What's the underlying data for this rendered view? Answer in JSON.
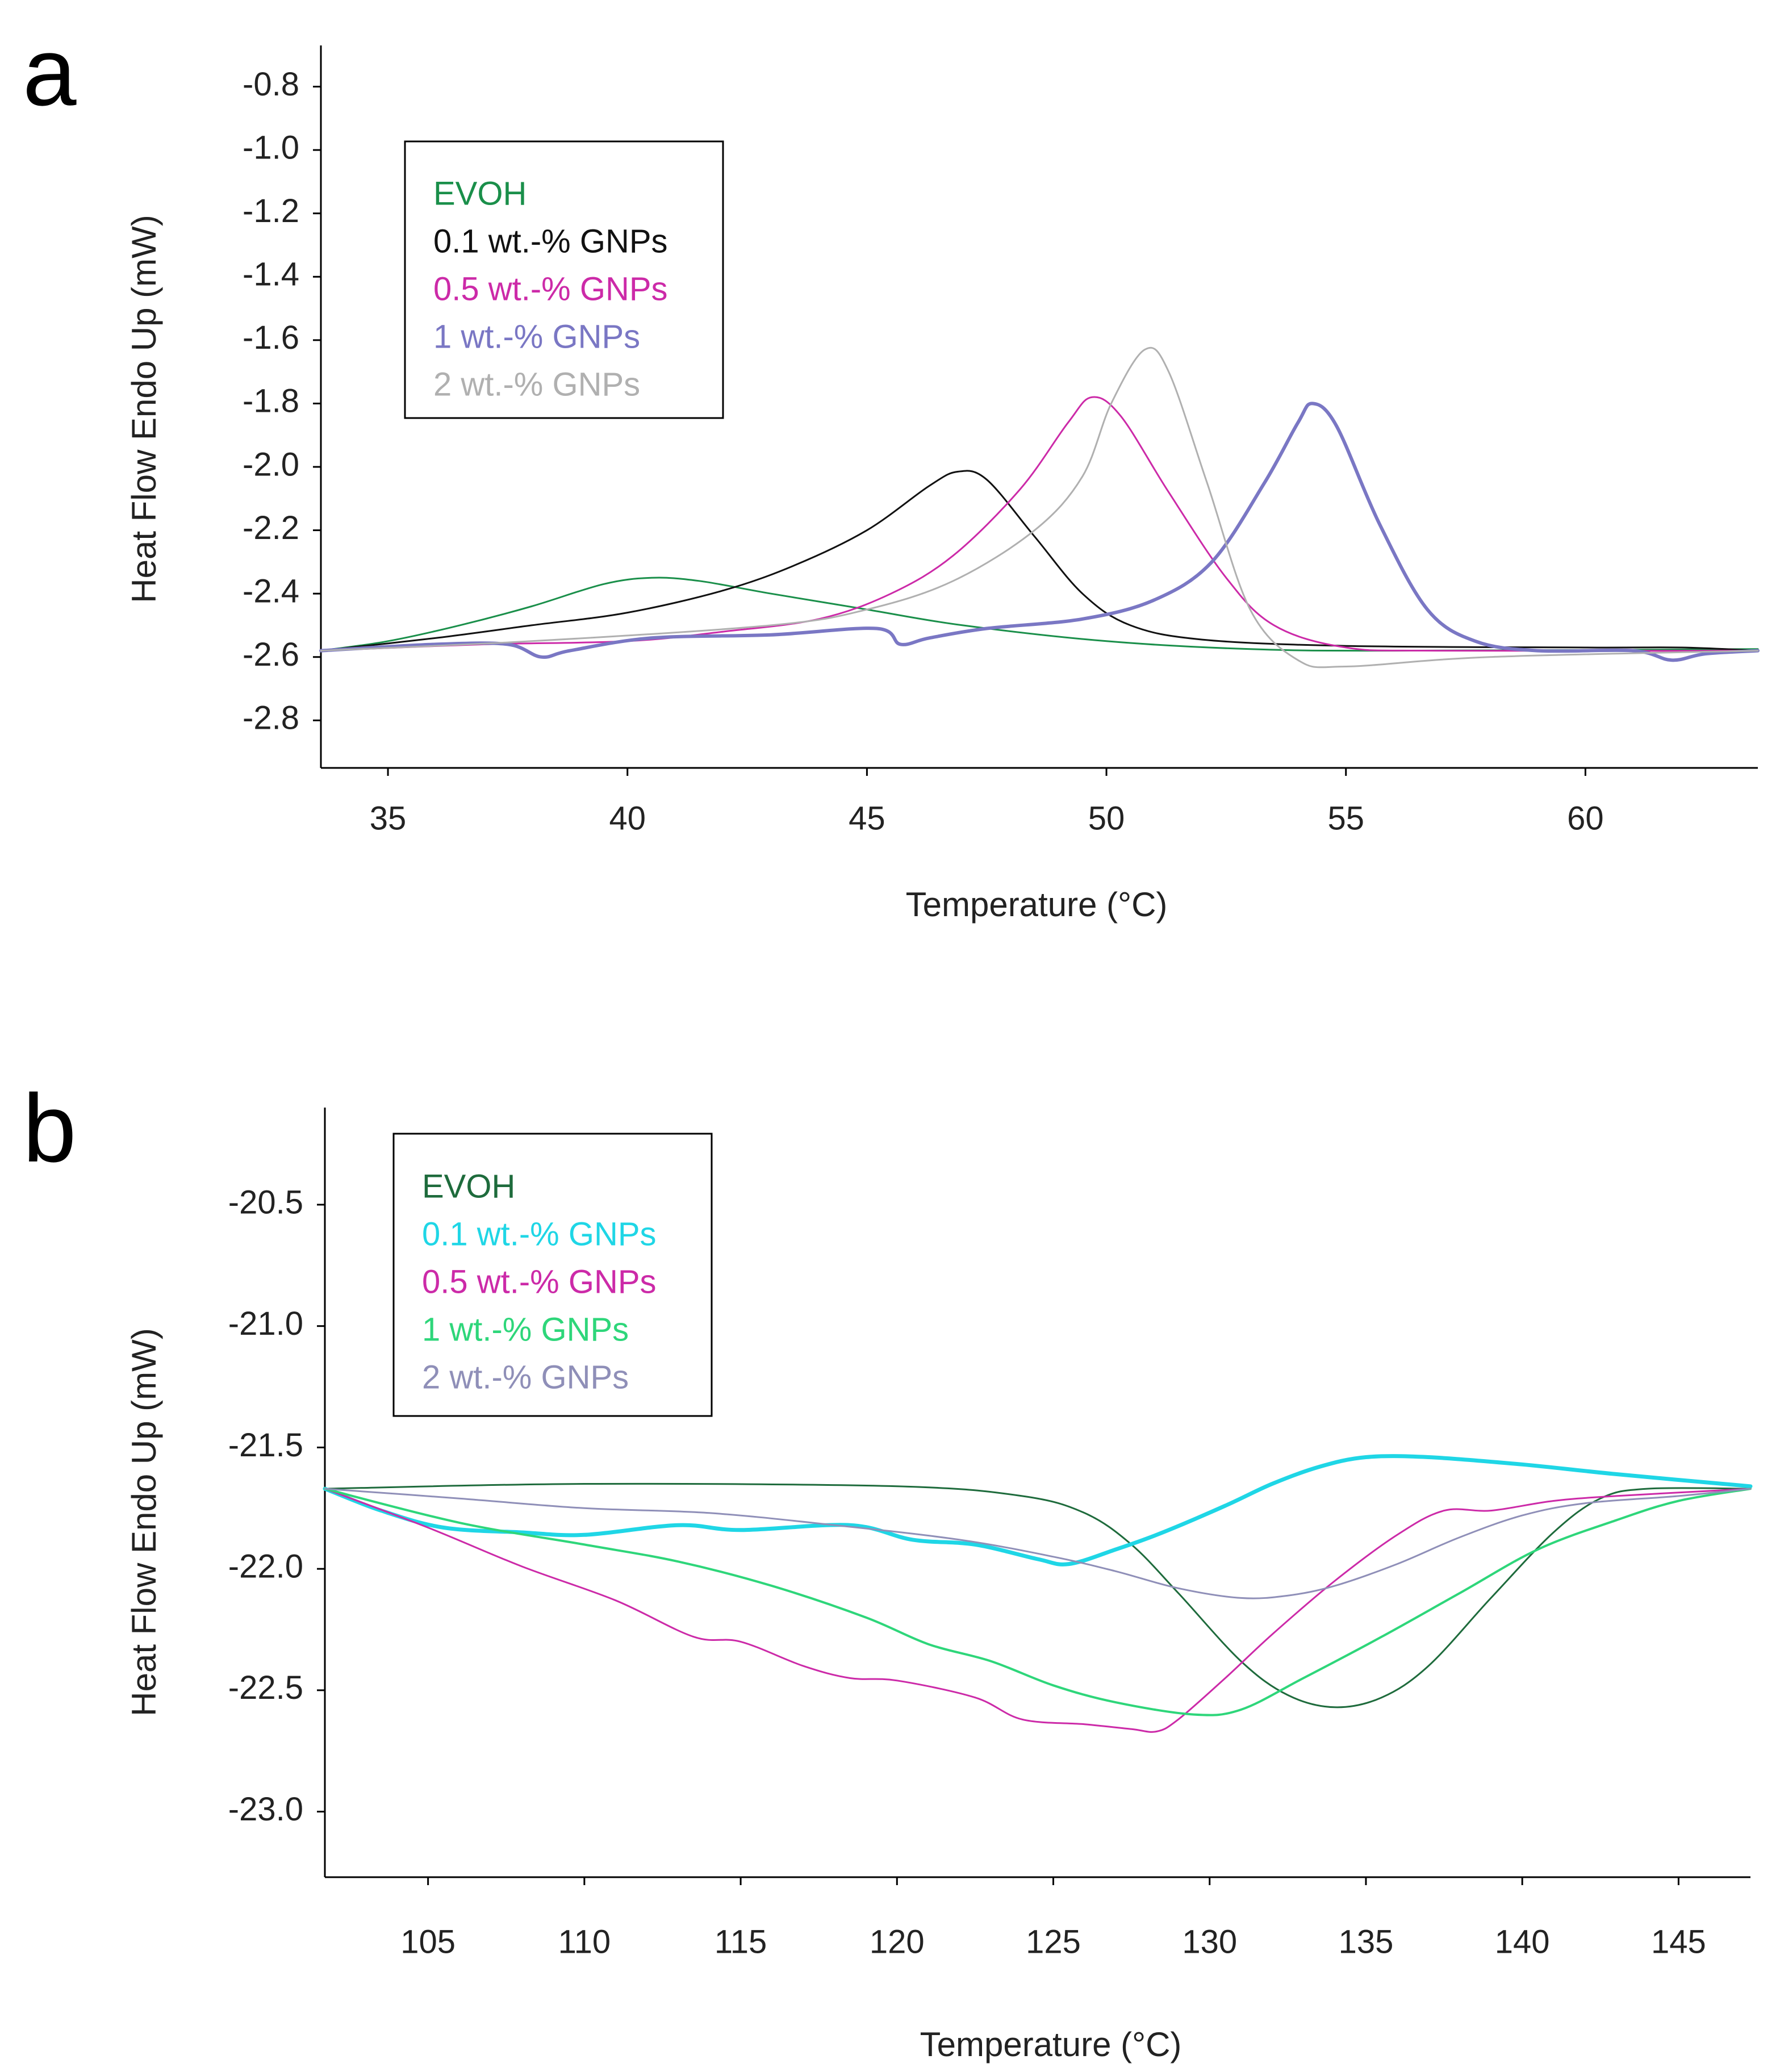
{
  "chart_data": [
    {
      "panel_label": "a",
      "type": "line",
      "title": "",
      "xlabel": "Temperature  (°C)",
      "ylabel": "Heat Flow Endo Up (mW)",
      "xlim": [
        33.6,
        63.6
      ],
      "ylim": [
        -2.95,
        -0.67
      ],
      "xticks": [
        35,
        40,
        45,
        50,
        55,
        60
      ],
      "xtick_labels": [
        "35",
        "40",
        "45",
        "50",
        "55",
        "60"
      ],
      "yticks": [
        -0.8,
        -1.0,
        -1.2,
        -1.4,
        -1.6,
        -1.8,
        -2.0,
        -2.2,
        -2.4,
        -2.6,
        -2.8
      ],
      "ytick_labels": [
        "-0.8",
        "-1.0",
        "-1.2",
        "-1.4",
        "-1.6",
        "-1.8",
        "-2.0",
        "-2.2",
        "-2.4",
        "-2.6",
        "-2.8"
      ],
      "grid": false,
      "legend_position": "top-left",
      "series": [
        {
          "name": "EVOH",
          "color": "#1a8f4a",
          "width": 3,
          "points": [
            [
              33.6,
              -2.58
            ],
            [
              35,
              -2.55
            ],
            [
              36.5,
              -2.5
            ],
            [
              38,
              -2.44
            ],
            [
              39.5,
              -2.37
            ],
            [
              40.5,
              -2.35
            ],
            [
              41.5,
              -2.36
            ],
            [
              43,
              -2.4
            ],
            [
              45,
              -2.45
            ],
            [
              47,
              -2.5
            ],
            [
              50,
              -2.55
            ],
            [
              53,
              -2.575
            ],
            [
              56,
              -2.58
            ],
            [
              63.6,
              -2.575
            ]
          ]
        },
        {
          "name": "0.1 wt.-% GNPs",
          "color": "#111111",
          "width": 3,
          "points": [
            [
              33.6,
              -2.58
            ],
            [
              36,
              -2.54
            ],
            [
              38,
              -2.5
            ],
            [
              40,
              -2.46
            ],
            [
              42,
              -2.39
            ],
            [
              43.5,
              -2.31
            ],
            [
              45,
              -2.2
            ],
            [
              46.3,
              -2.06
            ],
            [
              46.9,
              -2.015
            ],
            [
              47.5,
              -2.04
            ],
            [
              48.5,
              -2.22
            ],
            [
              49.5,
              -2.4
            ],
            [
              50.5,
              -2.5
            ],
            [
              52,
              -2.545
            ],
            [
              55,
              -2.565
            ],
            [
              60,
              -2.57
            ],
            [
              62,
              -2.57
            ],
            [
              63.6,
              -2.58
            ]
          ]
        },
        {
          "name": "0.5 wt.-% GNPs",
          "color": "#cc2aa8",
          "width": 3,
          "points": [
            [
              33.6,
              -2.58
            ],
            [
              37,
              -2.56
            ],
            [
              40,
              -2.55
            ],
            [
              42,
              -2.52
            ],
            [
              44,
              -2.48
            ],
            [
              45.5,
              -2.4
            ],
            [
              46.8,
              -2.28
            ],
            [
              48.2,
              -2.07
            ],
            [
              49.2,
              -1.86
            ],
            [
              49.7,
              -1.78
            ],
            [
              50.3,
              -1.84
            ],
            [
              51.3,
              -2.08
            ],
            [
              52.5,
              -2.35
            ],
            [
              53.5,
              -2.5
            ],
            [
              55,
              -2.57
            ],
            [
              57,
              -2.58
            ],
            [
              63.6,
              -2.58
            ]
          ]
        },
        {
          "name": "1 wt.-% GNPs",
          "color": "#7a77c4",
          "width": 6,
          "points": [
            [
              33.6,
              -2.58
            ],
            [
              36,
              -2.56
            ],
            [
              37.5,
              -2.56
            ],
            [
              38.2,
              -2.6
            ],
            [
              38.8,
              -2.58
            ],
            [
              40.5,
              -2.54
            ],
            [
              43,
              -2.53
            ],
            [
              45.2,
              -2.51
            ],
            [
              45.7,
              -2.56
            ],
            [
              46.3,
              -2.54
            ],
            [
              47.5,
              -2.51
            ],
            [
              49.5,
              -2.48
            ],
            [
              51,
              -2.42
            ],
            [
              52.2,
              -2.3
            ],
            [
              53.3,
              -2.05
            ],
            [
              54,
              -1.86
            ],
            [
              54.3,
              -1.8
            ],
            [
              54.8,
              -1.87
            ],
            [
              55.7,
              -2.18
            ],
            [
              56.7,
              -2.45
            ],
            [
              57.7,
              -2.55
            ],
            [
              59,
              -2.58
            ],
            [
              61,
              -2.58
            ],
            [
              61.8,
              -2.61
            ],
            [
              62.5,
              -2.59
            ],
            [
              63.6,
              -2.58
            ]
          ]
        },
        {
          "name": "2 wt.-% GNPs",
          "color": "#b0b0b0",
          "width": 3,
          "points": [
            [
              33.6,
              -2.58
            ],
            [
              38,
              -2.55
            ],
            [
              43,
              -2.5
            ],
            [
              45,
              -2.45
            ],
            [
              46.8,
              -2.36
            ],
            [
              48.5,
              -2.2
            ],
            [
              49.5,
              -2.03
            ],
            [
              50.1,
              -1.8
            ],
            [
              50.8,
              -1.63
            ],
            [
              51.3,
              -1.7
            ],
            [
              52.1,
              -2.05
            ],
            [
              53,
              -2.45
            ],
            [
              54,
              -2.61
            ],
            [
              55,
              -2.63
            ],
            [
              58,
              -2.6
            ],
            [
              63.6,
              -2.58
            ]
          ]
        }
      ]
    },
    {
      "panel_label": "b",
      "type": "line",
      "title": "",
      "xlabel": "Temperature  (°C)",
      "ylabel": "Heat Flow Endo Up (mW)",
      "xlim": [
        101.7,
        147.3
      ],
      "ylim": [
        -23.27,
        -20.1
      ],
      "xticks": [
        105,
        110,
        115,
        120,
        125,
        130,
        135,
        140,
        145
      ],
      "xtick_labels": [
        "105",
        "110",
        "115",
        "120",
        "125",
        "130",
        "135",
        "140",
        "145"
      ],
      "yticks": [
        -20.5,
        -21.0,
        -21.5,
        -22.0,
        -22.5,
        -23.0
      ],
      "ytick_labels": [
        "-20.5",
        "-21.0",
        "-21.5",
        "-22.0",
        "-22.5",
        "-23.0"
      ],
      "grid": false,
      "legend_position": "top-left",
      "series": [
        {
          "name": "EVOH",
          "color": "#1e6b3c",
          "width": 3,
          "points": [
            [
              101.7,
              -21.67
            ],
            [
              110,
              -21.65
            ],
            [
              120,
              -21.66
            ],
            [
              124,
              -21.7
            ],
            [
              126,
              -21.77
            ],
            [
              127.5,
              -21.9
            ],
            [
              129,
              -22.1
            ],
            [
              131,
              -22.38
            ],
            [
              132.5,
              -22.52
            ],
            [
              134,
              -22.57
            ],
            [
              135.5,
              -22.53
            ],
            [
              137,
              -22.4
            ],
            [
              139,
              -22.12
            ],
            [
              141,
              -21.85
            ],
            [
              142.5,
              -21.71
            ],
            [
              144,
              -21.67
            ],
            [
              147.3,
              -21.67
            ]
          ]
        },
        {
          "name": "0.1 wt.-% GNPs",
          "color": "#1fd6e6",
          "width": 7,
          "points": [
            [
              101.7,
              -21.67
            ],
            [
              103.5,
              -21.76
            ],
            [
              105.5,
              -21.83
            ],
            [
              108,
              -21.85
            ],
            [
              110,
              -21.86
            ],
            [
              113,
              -21.82
            ],
            [
              115,
              -21.84
            ],
            [
              118.5,
              -21.82
            ],
            [
              120.5,
              -21.88
            ],
            [
              122.5,
              -21.9
            ],
            [
              124.5,
              -21.96
            ],
            [
              125.5,
              -21.98
            ],
            [
              127,
              -21.92
            ],
            [
              128.5,
              -21.85
            ],
            [
              130.5,
              -21.74
            ],
            [
              132,
              -21.65
            ],
            [
              133.5,
              -21.58
            ],
            [
              135,
              -21.54
            ],
            [
              137,
              -21.54
            ],
            [
              140,
              -21.57
            ],
            [
              143,
              -21.61
            ],
            [
              147.3,
              -21.66
            ]
          ]
        },
        {
          "name": "0.5 wt.-% GNPs",
          "color": "#cc2aa8",
          "width": 3,
          "points": [
            [
              101.7,
              -21.67
            ],
            [
              105,
              -21.83
            ],
            [
              108,
              -21.99
            ],
            [
              111,
              -22.13
            ],
            [
              113.5,
              -22.28
            ],
            [
              115,
              -22.3
            ],
            [
              117,
              -22.4
            ],
            [
              118.5,
              -22.45
            ],
            [
              120,
              -22.46
            ],
            [
              122.5,
              -22.53
            ],
            [
              124,
              -22.62
            ],
            [
              126,
              -22.64
            ],
            [
              127.5,
              -22.66
            ],
            [
              128.3,
              -22.67
            ],
            [
              129,
              -22.62
            ],
            [
              130.5,
              -22.45
            ],
            [
              132,
              -22.27
            ],
            [
              134,
              -22.05
            ],
            [
              136,
              -21.86
            ],
            [
              137.5,
              -21.76
            ],
            [
              139,
              -21.76
            ],
            [
              141,
              -21.72
            ],
            [
              143,
              -21.7
            ],
            [
              147.3,
              -21.67
            ]
          ]
        },
        {
          "name": "1 wt.-% GNPs",
          "color": "#2ed67a",
          "width": 4,
          "points": [
            [
              101.7,
              -21.67
            ],
            [
              106,
              -21.81
            ],
            [
              110,
              -21.9
            ],
            [
              113,
              -21.97
            ],
            [
              116,
              -22.07
            ],
            [
              119,
              -22.2
            ],
            [
              121,
              -22.31
            ],
            [
              123,
              -22.38
            ],
            [
              125,
              -22.48
            ],
            [
              127,
              -22.55
            ],
            [
              129.5,
              -22.6
            ],
            [
              131,
              -22.58
            ],
            [
              133,
              -22.45
            ],
            [
              135.5,
              -22.28
            ],
            [
              138,
              -22.1
            ],
            [
              140.5,
              -21.92
            ],
            [
              143,
              -21.8
            ],
            [
              145,
              -21.72
            ],
            [
              147.3,
              -21.67
            ]
          ]
        },
        {
          "name": "2 wt.-% GNPs",
          "color": "#8f8fb8",
          "width": 3,
          "points": [
            [
              101.7,
              -21.67
            ],
            [
              106,
              -21.71
            ],
            [
              110,
              -21.75
            ],
            [
              114,
              -21.77
            ],
            [
              118,
              -21.82
            ],
            [
              122,
              -21.88
            ],
            [
              125,
              -21.95
            ],
            [
              127,
              -22.01
            ],
            [
              129,
              -22.08
            ],
            [
              131,
              -22.12
            ],
            [
              132.5,
              -22.11
            ],
            [
              134,
              -22.07
            ],
            [
              136,
              -21.98
            ],
            [
              138,
              -21.87
            ],
            [
              140,
              -21.78
            ],
            [
              142,
              -21.73
            ],
            [
              145,
              -21.7
            ],
            [
              147.3,
              -21.67
            ]
          ]
        }
      ]
    }
  ]
}
